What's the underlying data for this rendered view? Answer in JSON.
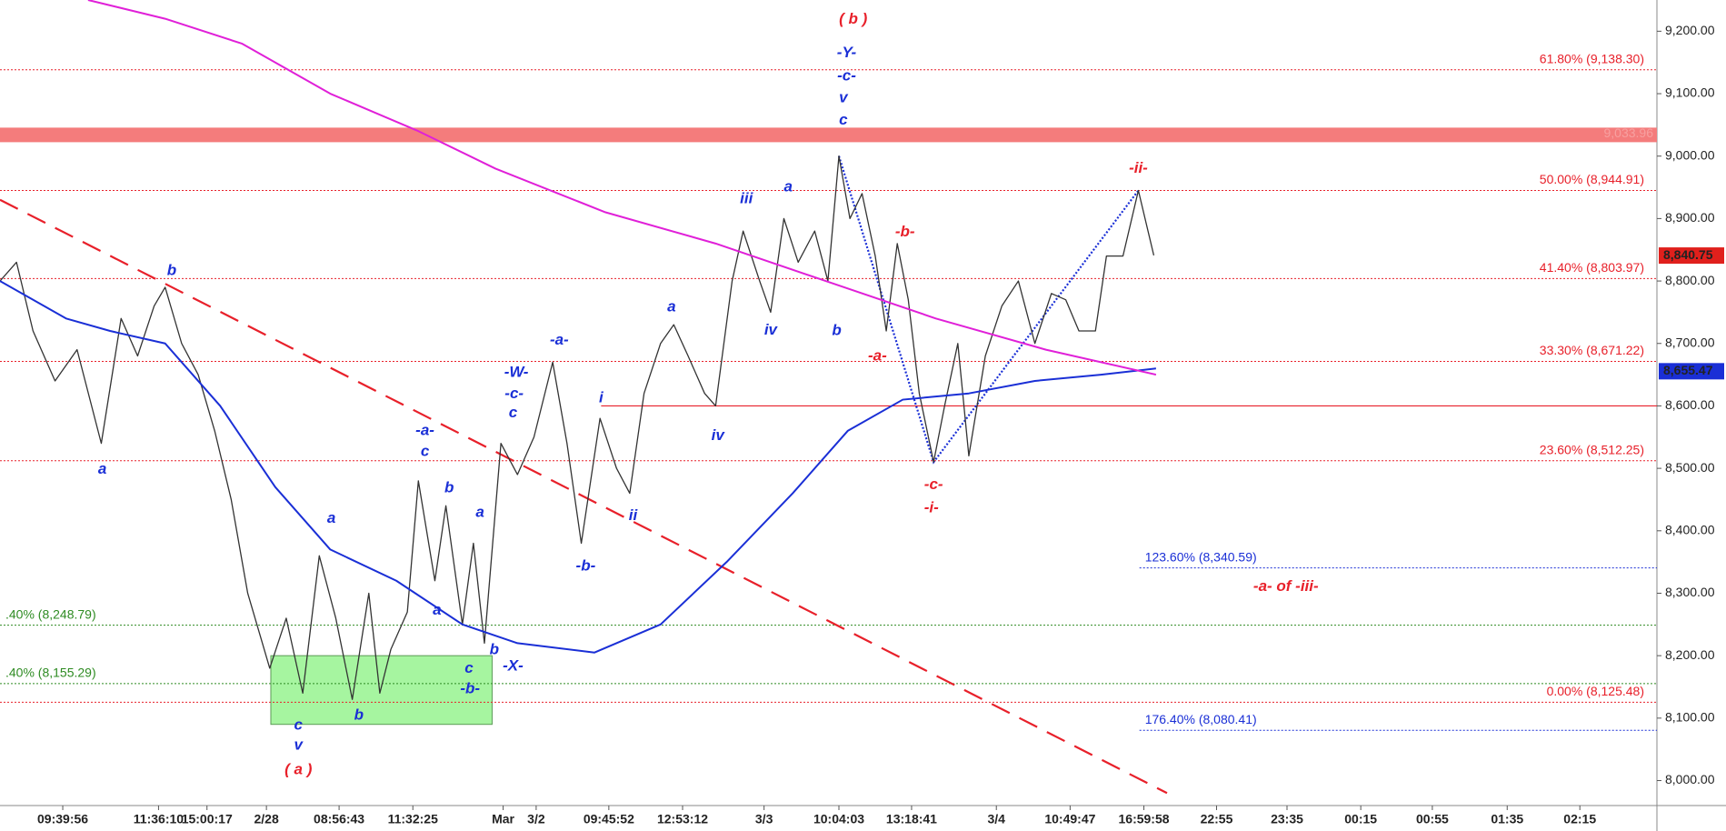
{
  "chart_data": {
    "type": "line",
    "xlim": [
      0,
      301
    ],
    "ylim": [
      7960,
      9250
    ],
    "xticks": [
      {
        "value": 11.4,
        "label": "09:39:56"
      },
      {
        "value": 28.8,
        "label": "11:36:10"
      },
      {
        "value": 37.6,
        "label": "15:00:17"
      },
      {
        "value": 48.4,
        "label": "2/28"
      },
      {
        "value": 61.6,
        "label": "08:56:43"
      },
      {
        "value": 75,
        "label": "11:32:25"
      },
      {
        "value": 91.4,
        "label": "Mar"
      },
      {
        "value": 97.4,
        "label": "3/2"
      },
      {
        "value": 110.6,
        "label": "09:45:52"
      },
      {
        "value": 124,
        "label": "12:53:12"
      },
      {
        "value": 138.8,
        "label": "3/3"
      },
      {
        "value": 152.4,
        "label": "10:04:03"
      },
      {
        "value": 165.6,
        "label": "13:18:41"
      },
      {
        "value": 181,
        "label": "3/4"
      },
      {
        "value": 194.4,
        "label": "10:49:47"
      },
      {
        "value": 207.8,
        "label": "16:59:58"
      },
      {
        "value": 221,
        "label": "22:55"
      },
      {
        "value": 233.8,
        "label": "23:35"
      },
      {
        "value": 247.2,
        "label": "00:15"
      },
      {
        "value": 260.2,
        "label": "00:55"
      },
      {
        "value": 273.8,
        "label": "01:35"
      },
      {
        "value": 287,
        "label": "02:15"
      }
    ],
    "yticks": [
      {
        "value": 8000,
        "label": "8,000.00"
      },
      {
        "value": 8100,
        "label": "8,100.00"
      },
      {
        "value": 8200,
        "label": "8,200.00"
      },
      {
        "value": 8300,
        "label": "8,300.00"
      },
      {
        "value": 8400,
        "label": "8,400.00"
      },
      {
        "value": 8500,
        "label": "8,500.00"
      },
      {
        "value": 8600,
        "label": "8,600.00"
      },
      {
        "value": 8700,
        "label": "8,700.00"
      },
      {
        "value": 8800,
        "label": "8,800.00"
      },
      {
        "value": 8900,
        "label": "8,900.00"
      },
      {
        "value": 9000,
        "label": "9,000.00"
      },
      {
        "value": 9100,
        "label": "9,100.00"
      },
      {
        "value": 9200,
        "label": "9,200.00"
      }
    ],
    "series": [
      {
        "color": "#333333",
        "x": [
          0,
          3,
          6,
          10,
          14,
          18.4,
          22,
          25,
          28,
          30,
          33,
          36,
          39,
          42,
          45,
          49,
          52,
          55,
          58,
          61,
          64,
          67,
          69,
          71,
          74,
          76,
          79,
          81,
          84,
          86,
          88,
          91,
          94,
          97,
          100.4,
          103,
          105.6,
          109,
          112,
          114.4,
          117,
          120,
          122.4,
          125,
          128,
          130,
          133,
          135,
          138,
          140,
          142.4,
          145,
          148,
          150.4,
          152.4,
          154.4,
          156.6,
          159,
          161,
          163,
          165,
          167,
          169.6,
          171.6,
          174,
          176,
          179,
          182,
          185,
          188,
          191,
          193.6,
          196,
          199,
          201,
          204,
          206.8,
          209.6
        ],
        "values": [
          8800,
          8830,
          8720,
          8640,
          8690,
          8540,
          8740,
          8680,
          8760,
          8790,
          8700,
          8650,
          8560,
          8450,
          8300,
          8180,
          8260,
          8140,
          8360,
          8260,
          8130,
          8300,
          8140,
          8210,
          8270,
          8480,
          8320,
          8440,
          8250,
          8380,
          8220,
          8540,
          8490,
          8550,
          8670,
          8540,
          8380,
          8580,
          8500,
          8460,
          8620,
          8700,
          8730,
          8680,
          8620,
          8600,
          8800,
          8880,
          8800,
          8750,
          8900,
          8830,
          8880,
          8800,
          9000,
          8900,
          8940,
          8840,
          8720,
          8860,
          8770,
          8620,
          8510,
          8600,
          8700,
          8520,
          8680,
          8760,
          8800,
          8700,
          8780,
          8770,
          8720,
          8720,
          8840,
          8840,
          8945,
          8841
        ]
      },
      {
        "color": "#1a2fd6",
        "x": [
          0,
          12,
          20,
          30,
          40,
          50,
          60,
          72,
          84,
          94,
          108,
          120,
          132,
          144,
          154,
          164,
          176,
          188,
          200,
          210
        ],
        "values": [
          8800,
          8740,
          8720,
          8700,
          8600,
          8470,
          8370,
          8320,
          8250,
          8220,
          8205,
          8250,
          8350,
          8460,
          8560,
          8610,
          8620,
          8640,
          8650,
          8660
        ]
      },
      {
        "color": "#e020d8",
        "x": [
          16,
          30,
          44,
          60,
          76,
          90,
          110,
          130,
          150,
          170,
          190,
          210
        ],
        "values": [
          9250,
          9220,
          9180,
          9100,
          9040,
          8980,
          8910,
          8860,
          8800,
          8740,
          8690,
          8650
        ]
      }
    ],
    "lines": [
      {
        "x": [
          0,
          212
        ],
        "values": [
          8930,
          7980
        ],
        "color": "#e8202a",
        "dash": "22 12"
      },
      {
        "x": [
          109.2,
          301
        ],
        "values": [
          8600,
          8600
        ],
        "color": "#e8202a",
        "dash": "none"
      },
      {
        "x": [
          152.4,
          169.6,
          206.8
        ],
        "values": [
          9000,
          8510,
          8945
        ],
        "color": "#1a2fd6",
        "dash": "2 2"
      }
    ],
    "levels": [
      {
        "value": 9138.3,
        "label": "61.80% (9,138.30)",
        "color": "#e8202a"
      },
      {
        "value": 8944.91,
        "label": "50.00% (8,944.91)",
        "color": "#e8202a"
      },
      {
        "value": 8803.97,
        "label": "41.40% (8,803.97)",
        "color": "#e8202a"
      },
      {
        "value": 8671.22,
        "label": "33.30% (8,671.22)",
        "color": "#e8202a"
      },
      {
        "value": 8512.25,
        "label": "23.60% (8,512.25)",
        "color": "#e8202a"
      },
      {
        "value": 8125.48,
        "label": "0.00% (8,125.48)",
        "color": "#e8202a"
      },
      {
        "value": 8248.79,
        "label": ".40% (8,248.79)",
        "color": "#2e8b22",
        "x_start": 0
      },
      {
        "value": 8155.29,
        "label": ".40% (8,155.29)",
        "color": "#2e8b22",
        "x_start": 0
      },
      {
        "value": 8340.59,
        "label": "123.60% (8,340.59)",
        "color": "#1a2fd6",
        "x_start": 207
      },
      {
        "value": 8080.41,
        "label": "176.40% (8,080.41)",
        "color": "#1a2fd6",
        "x_start": 207
      }
    ],
    "band": {
      "value": 9033.96,
      "label": "9,033.96",
      "color": "#f47c7c"
    },
    "zones": [
      {
        "x": [
          49.2,
          89.4
        ],
        "y": [
          8090,
          8200
        ],
        "color": "#a6f5a0"
      }
    ],
    "price_tags": [
      {
        "value": 8840.75,
        "label": "8,840.75",
        "color": "#e0201c"
      },
      {
        "value": 8655.47,
        "label": "8,655.47",
        "color": "#1a2fd6"
      }
    ],
    "annotations": [
      {
        "text": "( b )",
        "x": 155,
        "value": 9219,
        "color": "#e8202a"
      },
      {
        "text": "-Y-",
        "x": 153.8,
        "value": 9165,
        "color": "#1a2fd6"
      },
      {
        "text": "-c-",
        "x": 153.8,
        "value": 9128,
        "color": "#1a2fd6"
      },
      {
        "text": "v",
        "x": 153.2,
        "value": 9093,
        "color": "#1a2fd6"
      },
      {
        "text": "c",
        "x": 153.2,
        "value": 9057,
        "color": "#1a2fd6"
      },
      {
        "text": "iii",
        "x": 135.6,
        "value": 8931,
        "color": "#1a2fd6"
      },
      {
        "text": "a",
        "x": 143.2,
        "value": 8950,
        "color": "#1a2fd6"
      },
      {
        "text": "-ii-",
        "x": 206.8,
        "value": 8980,
        "color": "#e8202a"
      },
      {
        "text": "-b-",
        "x": 164.4,
        "value": 8878,
        "color": "#e8202a"
      },
      {
        "text": "b",
        "x": 31.2,
        "value": 8816,
        "color": "#1a2fd6"
      },
      {
        "text": "a",
        "x": 122,
        "value": 8758,
        "color": "#1a2fd6"
      },
      {
        "text": "iv",
        "x": 140,
        "value": 8721,
        "color": "#1a2fd6"
      },
      {
        "text": "b",
        "x": 152,
        "value": 8720,
        "color": "#1a2fd6"
      },
      {
        "text": "-a-",
        "x": 159.4,
        "value": 8679,
        "color": "#e8202a"
      },
      {
        "text": "-a-",
        "x": 101.6,
        "value": 8705,
        "color": "#1a2fd6"
      },
      {
        "text": "-W-",
        "x": 93.8,
        "value": 8653,
        "color": "#1a2fd6"
      },
      {
        "text": "-c-",
        "x": 93.4,
        "value": 8619,
        "color": "#1a2fd6"
      },
      {
        "text": "c",
        "x": 93.2,
        "value": 8588,
        "color": "#1a2fd6"
      },
      {
        "text": "i",
        "x": 109.2,
        "value": 8612,
        "color": "#1a2fd6"
      },
      {
        "text": "iv",
        "x": 130.4,
        "value": 8552,
        "color": "#1a2fd6"
      },
      {
        "text": "a",
        "x": 18.6,
        "value": 8498,
        "color": "#1a2fd6"
      },
      {
        "text": "-a-",
        "x": 77.2,
        "value": 8560,
        "color": "#1a2fd6"
      },
      {
        "text": "c",
        "x": 77.2,
        "value": 8526,
        "color": "#1a2fd6"
      },
      {
        "text": "b",
        "x": 81.6,
        "value": 8468,
        "color": "#1a2fd6"
      },
      {
        "text": "-c-",
        "x": 169.6,
        "value": 8473,
        "color": "#e8202a"
      },
      {
        "text": "-i-",
        "x": 169.2,
        "value": 8436,
        "color": "#e8202a"
      },
      {
        "text": "ii",
        "x": 115,
        "value": 8424,
        "color": "#1a2fd6"
      },
      {
        "text": "a",
        "x": 60.2,
        "value": 8419,
        "color": "#1a2fd6"
      },
      {
        "text": "a",
        "x": 87.2,
        "value": 8429,
        "color": "#1a2fd6"
      },
      {
        "text": "-b-",
        "x": 106.4,
        "value": 8343,
        "color": "#1a2fd6"
      },
      {
        "text": "a",
        "x": 79.4,
        "value": 8272,
        "color": "#1a2fd6"
      },
      {
        "text": "-a- of -iii-",
        "x": 233.6,
        "value": 8310,
        "color": "#e8202a"
      },
      {
        "text": "b",
        "x": 89.8,
        "value": 8209,
        "color": "#1a2fd6"
      },
      {
        "text": "-X-",
        "x": 93.2,
        "value": 8183,
        "color": "#1a2fd6"
      },
      {
        "text": "c",
        "x": 85.2,
        "value": 8179,
        "color": "#1a2fd6"
      },
      {
        "text": "-b-",
        "x": 85.4,
        "value": 8146,
        "color": "#1a2fd6"
      },
      {
        "text": "c",
        "x": 54.2,
        "value": 8088,
        "color": "#1a2fd6"
      },
      {
        "text": "b",
        "x": 65.2,
        "value": 8104,
        "color": "#1a2fd6"
      },
      {
        "text": "v",
        "x": 54.2,
        "value": 8056,
        "color": "#1a2fd6"
      },
      {
        "text": "( a )",
        "x": 54.2,
        "value": 8017,
        "color": "#e8202a"
      }
    ]
  }
}
